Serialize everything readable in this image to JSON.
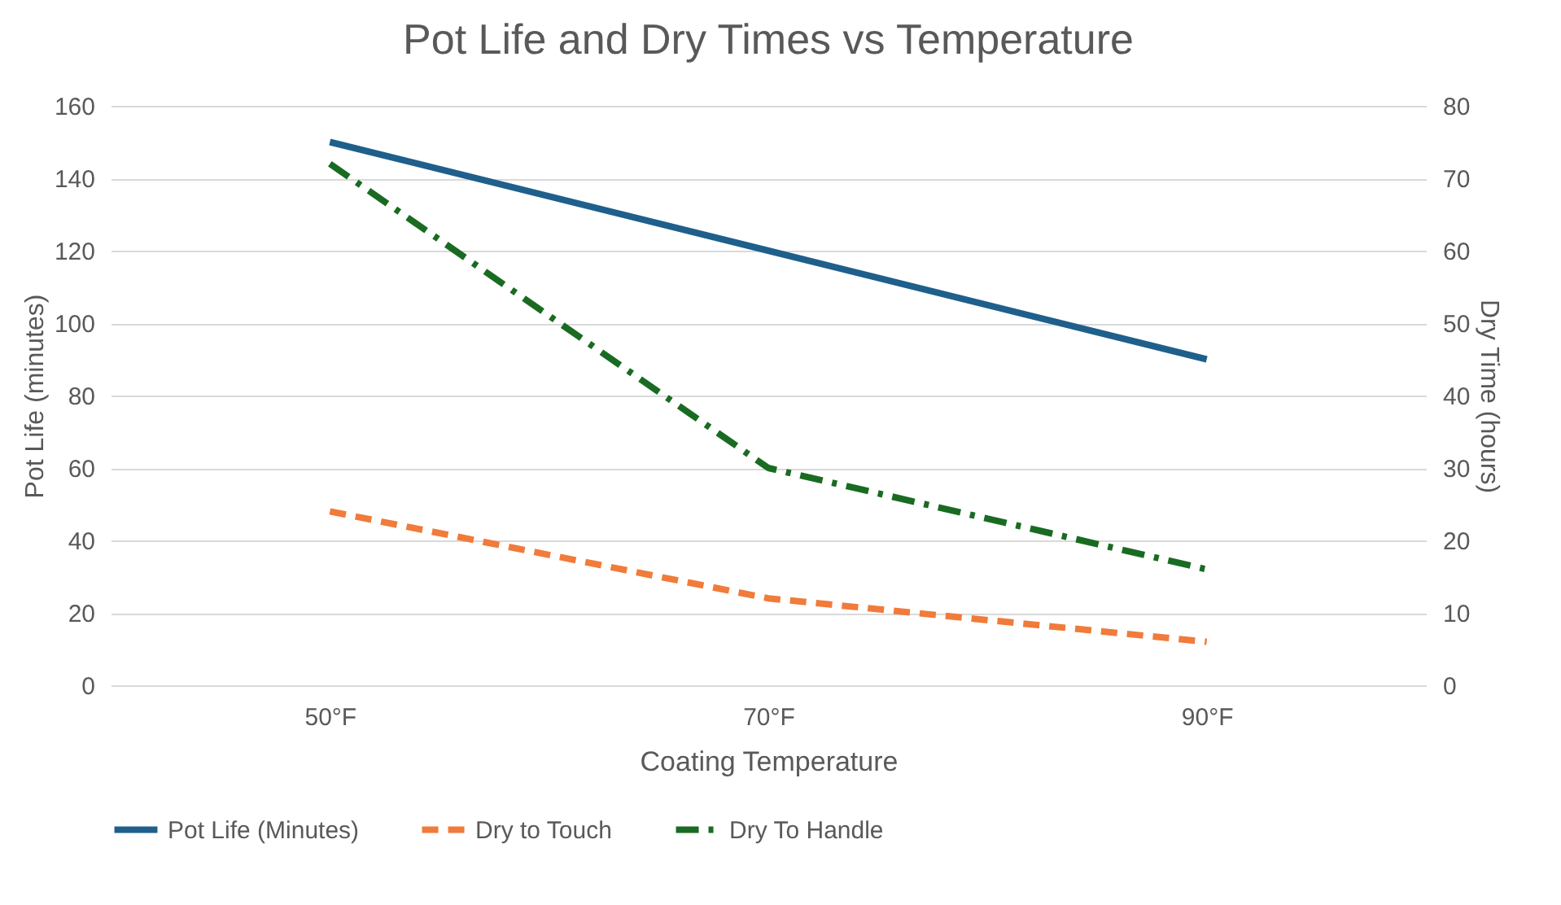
{
  "chart_data": {
    "type": "line",
    "title": "Pot Life and Dry Times vs Temperature",
    "xlabel": "Coating Temperature",
    "ylabel": "Pot Life (minutes)",
    "y2label": "Dry Time (hours)",
    "categories": [
      "50°F",
      "70°F",
      "90°F"
    ],
    "series": [
      {
        "name": "Pot Life (Minutes)",
        "color": "#1f5f8b",
        "values": [
          150,
          120,
          90
        ],
        "line_style": "solid"
      },
      {
        "name": "Dry to Touch",
        "color": "#f07b3a",
        "values": [
          24,
          12,
          6
        ],
        "axis": "y2",
        "line_style": "dashed"
      },
      {
        "name": "Dry To Handle",
        "color": "#1a6b22",
        "values": [
          72,
          30,
          16
        ],
        "axis": "y2",
        "line_style": "dashdot"
      }
    ],
    "ylim": [
      0,
      160
    ],
    "yticks": [
      0,
      20,
      40,
      60,
      80,
      100,
      120,
      140,
      160
    ],
    "y2lim": [
      0,
      80
    ],
    "y2ticks": [
      0,
      10,
      20,
      30,
      40,
      50,
      60,
      70,
      80
    ],
    "grid": "y",
    "legend": "bottom",
    "marker": "none"
  }
}
